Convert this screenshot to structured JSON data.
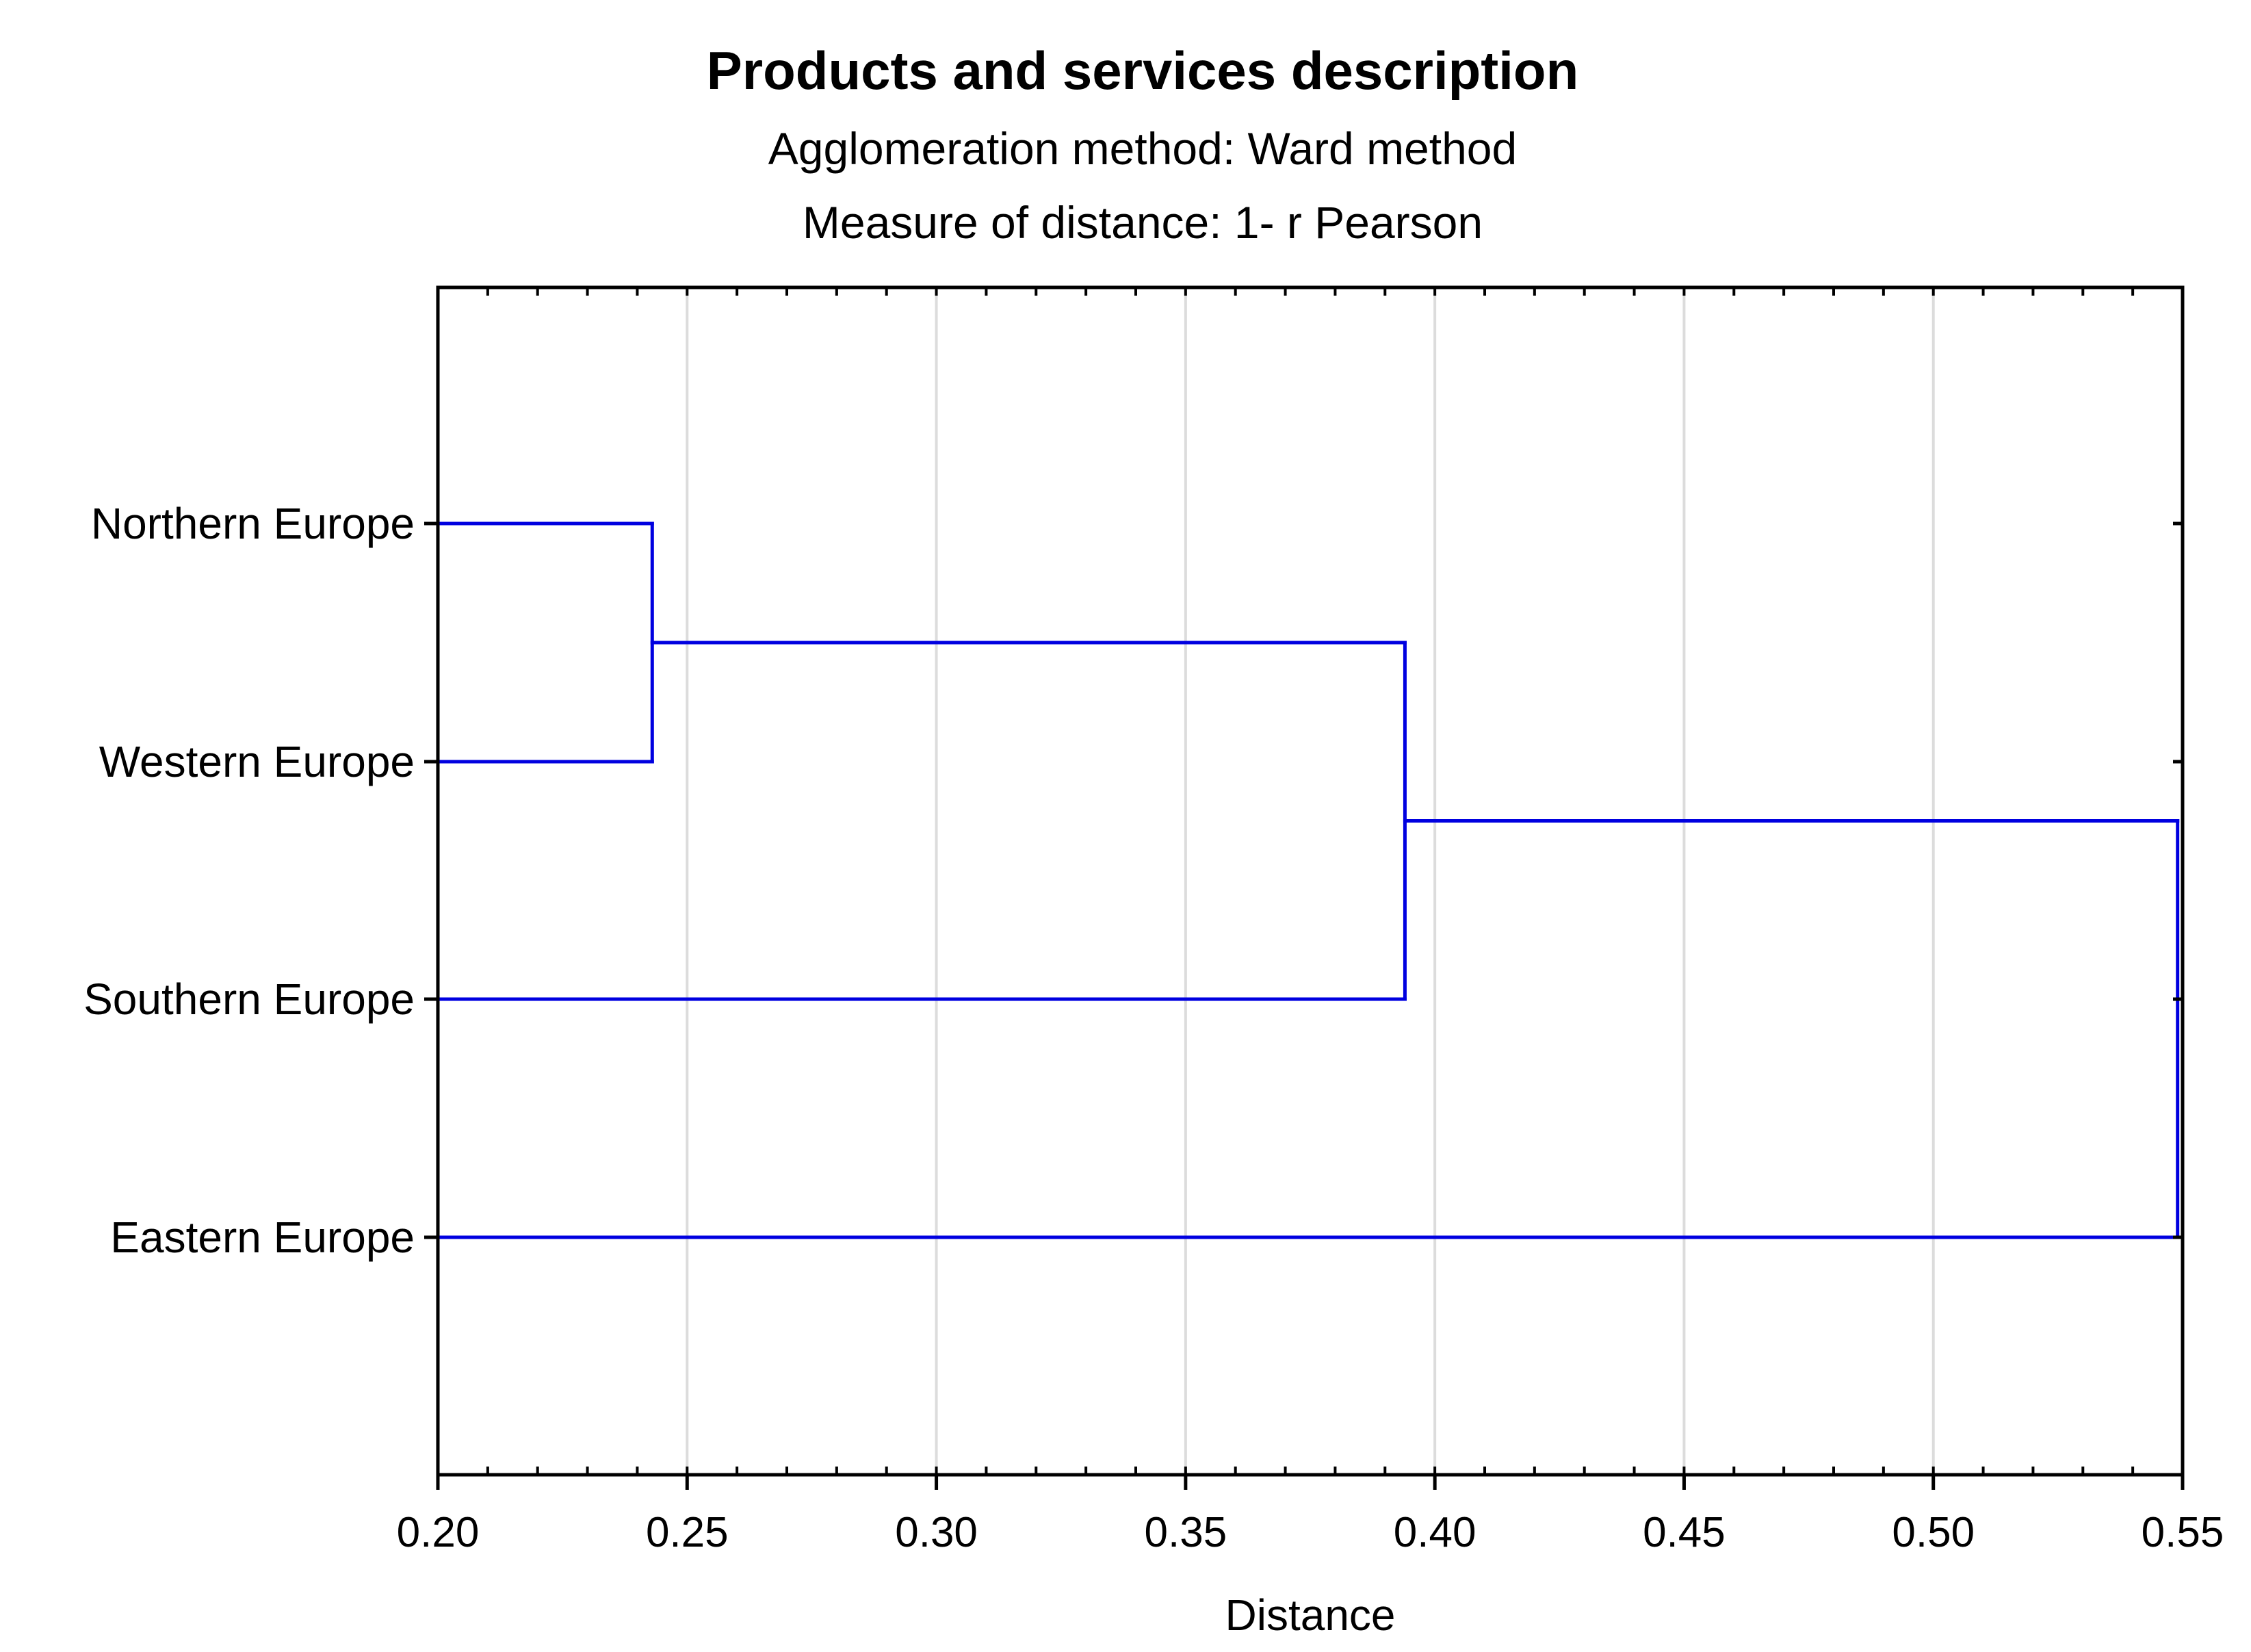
{
  "chart_data": {
    "type": "dendrogram",
    "title": "Products and services description",
    "subtitle_lines": [
      "Agglomeration method: Ward method",
      "Measure of distance: 1- r Pearson"
    ],
    "xlabel": "Distance",
    "xlim": [
      0.2,
      0.55
    ],
    "x_ticks": [
      0.2,
      0.25,
      0.3,
      0.35,
      0.4,
      0.45,
      0.5,
      0.55
    ],
    "x_tick_labels": [
      "0.20",
      "0.25",
      "0.30",
      "0.35",
      "0.40",
      "0.45",
      "0.50",
      "0.55"
    ],
    "x_minor_step": 0.01,
    "grid": true,
    "leaves": [
      "Northern Europe",
      "Western Europe",
      "Southern Europe",
      "Eastern Europe"
    ],
    "merges": [
      {
        "left": "Northern Europe",
        "right": "Western Europe",
        "distance": 0.243
      },
      {
        "left": "cluster-1",
        "right": "Southern Europe",
        "distance": 0.394
      },
      {
        "left": "cluster-2",
        "right": "Eastern Europe",
        "distance": 0.549
      }
    ],
    "line_color": "#0000e0",
    "grid_color": "#dcdcdc"
  }
}
